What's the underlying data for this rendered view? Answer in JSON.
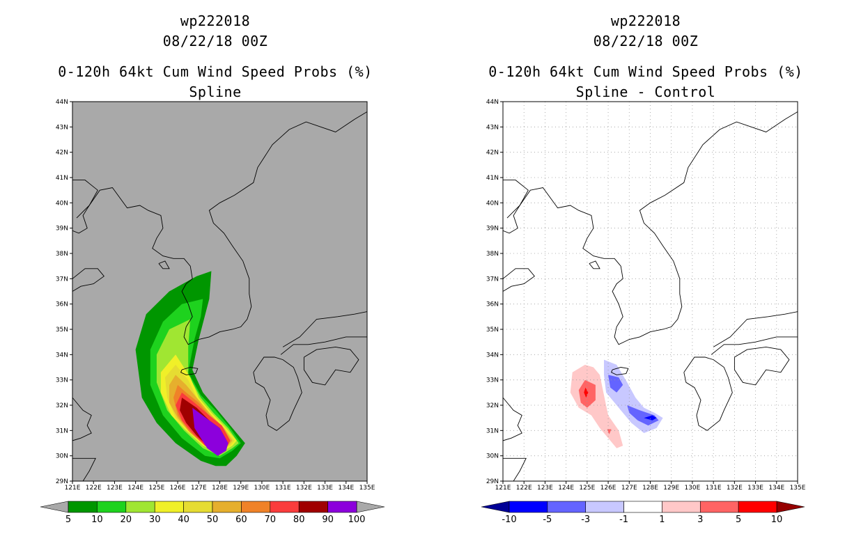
{
  "chart_data": [
    {
      "type": "contour-map",
      "title": {
        "storm_id": "wp222018",
        "datetime": "08/22/18 00Z",
        "line1": "0-120h 64kt Cum Wind Speed Probs (%)",
        "line2": "Spline"
      },
      "lon_ticks": [
        "121E",
        "122E",
        "123E",
        "124E",
        "125E",
        "126E",
        "127E",
        "128E",
        "129E",
        "130E",
        "131E",
        "132E",
        "133E",
        "134E",
        "135E"
      ],
      "lat_ticks": [
        "29N",
        "30N",
        "31N",
        "32N",
        "33N",
        "34N",
        "35N",
        "36N",
        "37N",
        "38N",
        "39N",
        "40N",
        "41N",
        "42N",
        "43N",
        "44N"
      ],
      "lon_range": [
        121,
        135
      ],
      "lat_range": [
        29,
        44
      ],
      "background": "#a9a9a9",
      "grid": false,
      "colorbar": {
        "labels": [
          "5",
          "10",
          "20",
          "30",
          "40",
          "50",
          "60",
          "70",
          "80",
          "90",
          "100"
        ],
        "colors": [
          "#009600",
          "#1ed21e",
          "#a0e632",
          "#f0f028",
          "#e6dc32",
          "#e6af2d",
          "#f08228",
          "#fa3c3c",
          "#a00000",
          "#8c00dc"
        ],
        "end_colors": [
          "#a9a9a9",
          "#a9a9a9"
        ]
      },
      "contour_levels": [
        {
          "level": 5,
          "color": "#009600",
          "polygon": [
            [
              127.6,
              37.3
            ],
            [
              126.9,
              37.1
            ],
            [
              125.6,
              36.5
            ],
            [
              124.5,
              35.6
            ],
            [
              124.0,
              34.2
            ],
            [
              124.3,
              32.3
            ],
            [
              125.0,
              31.3
            ],
            [
              125.9,
              30.5
            ],
            [
              127.1,
              29.8
            ],
            [
              127.8,
              29.6
            ],
            [
              128.3,
              29.6
            ],
            [
              128.8,
              30.0
            ],
            [
              129.2,
              30.5
            ],
            [
              128.6,
              31.1
            ],
            [
              127.9,
              31.8
            ],
            [
              127.2,
              32.5
            ],
            [
              126.7,
              33.4
            ],
            [
              127.0,
              34.6
            ],
            [
              127.5,
              36.2
            ]
          ]
        },
        {
          "level": 10,
          "color": "#1ed21e",
          "polygon": [
            [
              127.2,
              36.2
            ],
            [
              126.2,
              36.0
            ],
            [
              125.3,
              35.3
            ],
            [
              124.7,
              34.2
            ],
            [
              124.7,
              32.8
            ],
            [
              125.3,
              31.6
            ],
            [
              126.2,
              30.7
            ],
            [
              127.3,
              30.0
            ],
            [
              128.0,
              29.9
            ],
            [
              128.6,
              30.2
            ],
            [
              129.0,
              30.5
            ],
            [
              128.5,
              31.1
            ],
            [
              127.8,
              31.8
            ],
            [
              127.1,
              32.4
            ],
            [
              126.5,
              33.3
            ],
            [
              126.8,
              34.6
            ],
            [
              127.1,
              35.5
            ]
          ]
        },
        {
          "level": 20,
          "color": "#a0e632",
          "polygon": [
            [
              126.6,
              35.4
            ],
            [
              125.6,
              35.0
            ],
            [
              125.0,
              34.0
            ],
            [
              125.0,
              32.9
            ],
            [
              125.5,
              31.8
            ],
            [
              126.3,
              31.0
            ],
            [
              127.2,
              30.3
            ],
            [
              128.0,
              30.0
            ],
            [
              128.6,
              30.3
            ],
            [
              128.9,
              30.5
            ],
            [
              128.4,
              31.1
            ],
            [
              127.7,
              31.7
            ],
            [
              127.1,
              32.3
            ],
            [
              126.5,
              33.2
            ],
            [
              126.5,
              34.3
            ]
          ]
        },
        {
          "level": 30,
          "color": "#f0f028",
          "polygon": [
            [
              125.9,
              34.0
            ],
            [
              125.2,
              33.3
            ],
            [
              125.2,
              32.5
            ],
            [
              125.7,
              31.6
            ],
            [
              126.4,
              31.0
            ],
            [
              127.2,
              30.4
            ],
            [
              128.0,
              30.1
            ],
            [
              128.6,
              30.4
            ],
            [
              128.8,
              30.6
            ],
            [
              128.3,
              31.1
            ],
            [
              127.6,
              31.7
            ],
            [
              127.0,
              32.3
            ],
            [
              126.6,
              33.1
            ]
          ]
        },
        {
          "level": 40,
          "color": "#e6dc32",
          "polygon": [
            [
              125.9,
              33.6
            ],
            [
              125.4,
              33.1
            ],
            [
              125.5,
              32.3
            ],
            [
              125.9,
              31.5
            ],
            [
              126.5,
              31.0
            ],
            [
              127.2,
              30.5
            ],
            [
              127.9,
              30.2
            ],
            [
              128.5,
              30.4
            ],
            [
              128.7,
              30.6
            ],
            [
              128.2,
              31.1
            ],
            [
              127.5,
              31.7
            ],
            [
              126.9,
              32.3
            ],
            [
              126.5,
              33.0
            ]
          ]
        },
        {
          "level": 50,
          "color": "#e6af2d",
          "polygon": [
            [
              125.9,
              33.2
            ],
            [
              125.6,
              32.8
            ],
            [
              125.6,
              32.1
            ],
            [
              126.0,
              31.5
            ],
            [
              126.6,
              30.9
            ],
            [
              127.3,
              30.4
            ],
            [
              127.9,
              30.2
            ],
            [
              128.4,
              30.4
            ],
            [
              128.6,
              30.6
            ],
            [
              128.2,
              31.1
            ],
            [
              127.6,
              31.6
            ],
            [
              126.9,
              32.3
            ],
            [
              126.4,
              32.8
            ]
          ]
        },
        {
          "level": 60,
          "color": "#f08228",
          "polygon": [
            [
              126.0,
              32.8
            ],
            [
              125.8,
              32.3
            ],
            [
              126.0,
              31.6
            ],
            [
              126.5,
              31.0
            ],
            [
              127.2,
              30.5
            ],
            [
              127.8,
              30.3
            ],
            [
              128.3,
              30.4
            ],
            [
              128.5,
              30.6
            ],
            [
              128.1,
              31.1
            ],
            [
              127.6,
              31.5
            ],
            [
              127.0,
              32.1
            ],
            [
              126.4,
              32.5
            ]
          ]
        },
        {
          "level": 70,
          "color": "#fa3c3c",
          "polygon": [
            [
              126.2,
              32.5
            ],
            [
              125.9,
              32.0
            ],
            [
              126.2,
              31.4
            ],
            [
              126.7,
              30.9
            ],
            [
              127.3,
              30.4
            ],
            [
              127.8,
              30.2
            ],
            [
              128.3,
              30.3
            ],
            [
              128.5,
              30.6
            ],
            [
              128.1,
              31.2
            ],
            [
              127.5,
              31.6
            ],
            [
              126.8,
              32.1
            ]
          ]
        },
        {
          "level": 80,
          "color": "#a00000",
          "polygon": [
            [
              126.2,
              32.3
            ],
            [
              126.1,
              31.8
            ],
            [
              126.4,
              31.3
            ],
            [
              126.9,
              30.8
            ],
            [
              127.4,
              30.4
            ],
            [
              127.8,
              30.1
            ],
            [
              128.2,
              30.2
            ],
            [
              128.4,
              30.5
            ],
            [
              128.0,
              31.1
            ],
            [
              127.5,
              31.4
            ],
            [
              126.9,
              31.9
            ]
          ]
        },
        {
          "level": 90,
          "color": "#8c00dc",
          "polygon": [
            [
              126.7,
              31.9
            ],
            [
              126.8,
              31.1
            ],
            [
              127.4,
              30.3
            ],
            [
              127.9,
              30.0
            ],
            [
              128.3,
              30.2
            ],
            [
              128.4,
              30.5
            ],
            [
              128.0,
              31.1
            ],
            [
              127.5,
              31.4
            ]
          ]
        }
      ]
    },
    {
      "type": "contour-map",
      "title": {
        "storm_id": "wp222018",
        "datetime": "08/22/18 00Z",
        "line1": "0-120h 64kt Cum Wind Speed Probs (%)",
        "line2": "Spline - Control"
      },
      "lon_ticks": [
        "121E",
        "122E",
        "123E",
        "124E",
        "125E",
        "126E",
        "127E",
        "128E",
        "129E",
        "130E",
        "131E",
        "132E",
        "133E",
        "134E",
        "135E"
      ],
      "lat_ticks": [
        "29N",
        "30N",
        "31N",
        "32N",
        "33N",
        "34N",
        "35N",
        "36N",
        "37N",
        "38N",
        "39N",
        "40N",
        "41N",
        "42N",
        "43N",
        "44N"
      ],
      "lon_range": [
        121,
        135
      ],
      "lat_range": [
        29,
        44
      ],
      "background": "#ffffff",
      "grid": true,
      "colorbar": {
        "labels": [
          "-10",
          "-5",
          "-3",
          "-1",
          "1",
          "3",
          "5",
          "10"
        ],
        "colors": [
          "#0000ff",
          "#6464ff",
          "#c8c8ff",
          "#ffffff",
          "#ffc8c8",
          "#ff6464",
          "#ff0000"
        ],
        "end_colors": [
          "#000096",
          "#960000"
        ]
      },
      "contour_levels": [
        {
          "level": 1,
          "color": "#ffc8c8",
          "polygon": [
            [
              124.9,
              33.6
            ],
            [
              124.3,
              33.3
            ],
            [
              124.2,
              32.5
            ],
            [
              124.6,
              31.9
            ],
            [
              125.2,
              31.6
            ],
            [
              125.6,
              31.1
            ],
            [
              126.0,
              30.7
            ],
            [
              126.4,
              30.3
            ],
            [
              126.7,
              30.4
            ],
            [
              126.5,
              31.0
            ],
            [
              126.0,
              31.6
            ],
            [
              125.8,
              32.4
            ],
            [
              125.6,
              33.2
            ],
            [
              125.3,
              33.5
            ]
          ]
        },
        {
          "level": 3,
          "color": "#ff6464",
          "polygon": [
            [
              124.9,
              33.0
            ],
            [
              124.6,
              32.6
            ],
            [
              124.7,
              32.1
            ],
            [
              125.0,
              31.9
            ],
            [
              125.4,
              32.2
            ],
            [
              125.4,
              32.8
            ]
          ]
        },
        {
          "level": 3,
          "color": "#ff6464",
          "polygon": [
            [
              125.95,
              31.05
            ],
            [
              126.05,
              30.85
            ],
            [
              126.15,
              31.05
            ]
          ]
        },
        {
          "level": 5,
          "color": "#ff0000",
          "polygon": [
            [
              124.92,
              32.7
            ],
            [
              124.85,
              32.5
            ],
            [
              124.95,
              32.3
            ],
            [
              125.05,
              32.5
            ]
          ]
        },
        {
          "level": -1,
          "color": "#c8c8ff",
          "polygon": [
            [
              125.8,
              33.8
            ],
            [
              126.4,
              33.6
            ],
            [
              126.9,
              32.9
            ],
            [
              127.3,
              32.3
            ],
            [
              127.7,
              31.9
            ],
            [
              128.2,
              31.7
            ],
            [
              128.6,
              31.5
            ],
            [
              128.3,
              31.1
            ],
            [
              127.7,
              30.9
            ],
            [
              127.1,
              31.3
            ],
            [
              126.5,
              31.9
            ],
            [
              125.9,
              32.5
            ],
            [
              125.8,
              33.2
            ]
          ]
        },
        {
          "level": -3,
          "color": "#6464ff",
          "polygon": [
            [
              126.0,
              33.2
            ],
            [
              126.5,
              33.1
            ],
            [
              126.7,
              32.8
            ],
            [
              126.4,
              32.5
            ],
            [
              126.1,
              32.7
            ]
          ]
        },
        {
          "level": -3,
          "color": "#6464ff",
          "polygon": [
            [
              126.9,
              32.0
            ],
            [
              127.5,
              31.8
            ],
            [
              128.2,
              31.6
            ],
            [
              128.4,
              31.4
            ],
            [
              127.9,
              31.2
            ],
            [
              127.4,
              31.4
            ],
            [
              127.0,
              31.7
            ]
          ]
        },
        {
          "level": -5,
          "color": "#0000ff",
          "polygon": [
            [
              127.7,
              31.5
            ],
            [
              128.1,
              31.6
            ],
            [
              128.3,
              31.5
            ],
            [
              128.1,
              31.4
            ]
          ]
        }
      ]
    }
  ]
}
